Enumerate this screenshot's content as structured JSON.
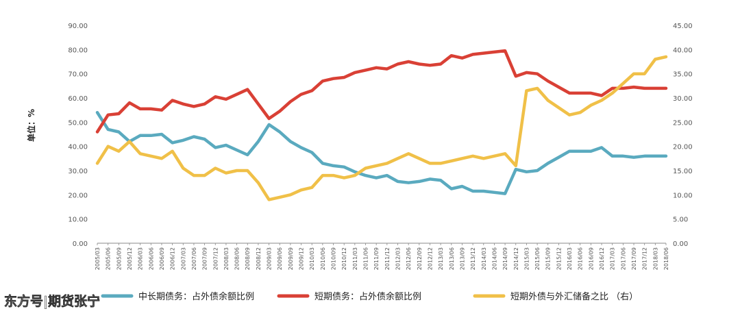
{
  "chart_data": {
    "type": "line",
    "title": "",
    "ylabel": "单位：%",
    "ylim_left": [
      0,
      90
    ],
    "ylim_right": [
      0,
      45
    ],
    "grid": false,
    "legend_position": "bottom",
    "left_ticks": [
      "0.00",
      "10.00",
      "20.00",
      "30.00",
      "40.00",
      "50.00",
      "60.00",
      "70.00",
      "80.00",
      "90.00"
    ],
    "right_ticks": [
      "0.00",
      "5.00",
      "10.00",
      "15.00",
      "20.00",
      "25.00",
      "30.00",
      "35.00",
      "40.00",
      "45.00"
    ],
    "x": [
      "2005/03",
      "2005/06",
      "2005/09",
      "2005/12",
      "2006/03",
      "2006/06",
      "2006/09",
      "2006/12",
      "2007/03",
      "2007/06",
      "2007/09",
      "2007/12",
      "2008/03",
      "2008/06",
      "2008/09",
      "2008/12",
      "2009/03",
      "2009/06",
      "2009/09",
      "2009/12",
      "2010/03",
      "2010/06",
      "2010/09",
      "2010/12",
      "2011/03",
      "2011/06",
      "2011/09",
      "2011/12",
      "2012/03",
      "2012/06",
      "2012/09",
      "2012/12",
      "2013/03",
      "2013/06",
      "2013/09",
      "2013/12",
      "2014/03",
      "2014/06",
      "2014/09",
      "2014/12",
      "2015/03",
      "2015/06",
      "2015/09",
      "2015/12",
      "2016/03",
      "2016/06",
      "2016/09",
      "2016/12",
      "2017/03",
      "2017/06",
      "2017/09",
      "2017/12",
      "2018/03",
      "2018/06"
    ],
    "series": [
      {
        "name": "中长期债务：占外债余额比例",
        "axis": "left",
        "color": "#5aaabf",
        "values": [
          54,
          47,
          46,
          42,
          44.5,
          44.5,
          45,
          41.5,
          42.5,
          44,
          43,
          39.5,
          40.5,
          38.5,
          36.5,
          42,
          49,
          46,
          42,
          39.5,
          37.5,
          33,
          32,
          31.5,
          29.5,
          28,
          27,
          28,
          25.5,
          25,
          25.5,
          26.5,
          26,
          22.5,
          23.5,
          21.5,
          21.5,
          21,
          20.5,
          30.5,
          29.5,
          30,
          33,
          35.5,
          38,
          38,
          38,
          39.5,
          36,
          36,
          35.5,
          36,
          36,
          36
        ]
      },
      {
        "name": "短期债务：占外债余额比例",
        "axis": "left",
        "color": "#d94035",
        "values": [
          46,
          53,
          53.5,
          58,
          55.5,
          55.5,
          55,
          59,
          57.5,
          56.5,
          57.5,
          60.5,
          59.5,
          61.5,
          63.5,
          57.5,
          51.5,
          54.5,
          58.5,
          61.5,
          63,
          67,
          68,
          68.5,
          70.5,
          71.5,
          72.5,
          72,
          74,
          75,
          74,
          73.5,
          74,
          77.5,
          76.5,
          78,
          78.5,
          79,
          79.5,
          69,
          70.5,
          70,
          67,
          64.5,
          62,
          62,
          62,
          61,
          64,
          64,
          64.5,
          64,
          64,
          64
        ]
      },
      {
        "name": "短期外债与外汇储备之比 （右）",
        "axis": "right",
        "color": "#f0c048",
        "values": [
          16.5,
          20,
          19,
          21,
          18.5,
          18,
          17.5,
          19,
          15.5,
          14,
          14,
          15.5,
          14.5,
          15,
          15,
          12.5,
          9,
          9.5,
          10,
          11,
          11.5,
          14,
          14,
          13.5,
          14,
          15.5,
          16,
          16.5,
          17.5,
          18.5,
          17.5,
          16.5,
          16.5,
          17,
          17.5,
          18,
          17.5,
          18,
          18.5,
          16,
          31.5,
          32,
          29.5,
          28,
          26.5,
          27,
          28.5,
          29.5,
          31,
          33,
          35,
          35,
          38,
          38.5
        ]
      }
    ]
  },
  "watermark": "东方号|期货张宁"
}
